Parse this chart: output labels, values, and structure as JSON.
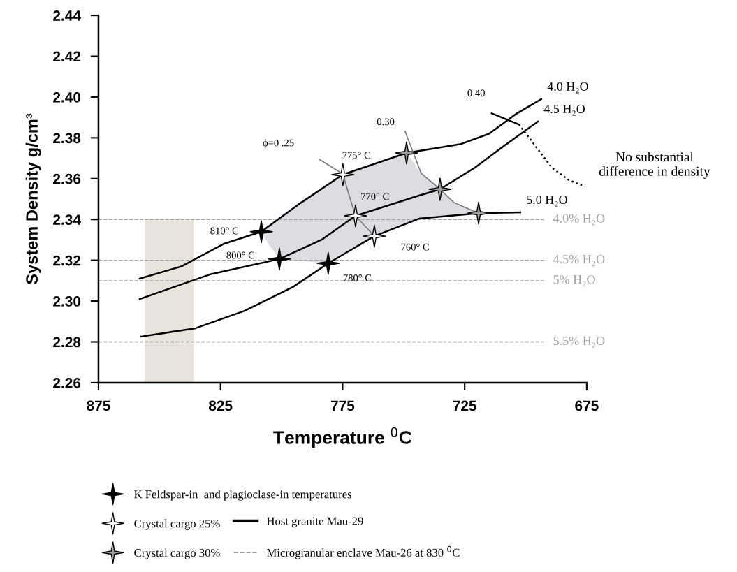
{
  "chart_data": {
    "type": "line",
    "xlabel": "Temperature $^{0}$C",
    "ylabel": "System Density g/cm³",
    "xlim": [
      875,
      675
    ],
    "xticks": [
      875,
      825,
      775,
      725,
      675
    ],
    "ylim": [
      2.26,
      2.44
    ],
    "yticks": [
      2.26,
      2.28,
      {
        "value": 2.3,
        "label": "2.30"
      },
      2.32,
      2.34,
      2.36,
      2.38,
      {
        "value": 2.4,
        "label": "2.40"
      },
      2.42,
      2.44
    ],
    "grid": false,
    "legend": "bottom",
    "series": [
      {
        "type": "area",
        "color": "#dcdde0",
        "x": [
          808.3,
          792.3,
          774.9,
          748.8,
          742.8,
          735.1,
          729.4,
          719.3,
          743.7,
          762,
          780.9,
          800.9,
          805.2
        ],
        "values": [
          2.334,
          2.348,
          2.362,
          2.3726,
          2.3626,
          2.3548,
          2.3483,
          2.3431,
          2.3404,
          2.3318,
          2.3185,
          2.3206,
          2.3277
        ]
      },
      {
        "name": "4.0 H₂O",
        "color": "#000000",
        "x": [
          858.1,
          841,
          823.8,
          808.3,
          792.3,
          774.9,
          748.8,
          726.5,
          715,
          703.6,
          693.6
        ],
        "values": [
          2.311,
          2.317,
          2.328,
          2.334,
          2.348,
          2.362,
          2.3726,
          2.377,
          2.382,
          2.392,
          2.399
        ]
      },
      {
        "name": "4.5 H₂O",
        "color": "#000000",
        "x": [
          858.1,
          829.5,
          800.9,
          783.7,
          769.7,
          743.7,
          735.1,
          720.8,
          709.4,
          695
        ],
        "values": [
          2.301,
          2.313,
          2.3206,
          2.33,
          2.3418,
          2.3517,
          2.3548,
          2.3654,
          2.3756,
          2.388
        ]
      },
      {
        "name": "5.0 H₂O",
        "color": "#000000",
        "x": [
          857.5,
          835.2,
          815.2,
          795.2,
          780.9,
          762,
          743.7,
          719.3,
          702.2
        ],
        "values": [
          2.2826,
          2.2867,
          2.2952,
          2.307,
          2.3185,
          2.3318,
          2.3404,
          2.3431,
          2.3435
        ]
      },
      {
        "type": "line",
        "color": "#7a7a7a",
        "x": [
          784.6,
          774.9,
          772.3,
          769.7,
          762
        ],
        "values": [
          2.3695,
          2.3623,
          2.3517,
          2.3418,
          2.3318
        ]
      },
      {
        "type": "line",
        "color": "#7a7a7a",
        "x": [
          749.4,
          742.8,
          735.1,
          729.4,
          719.3
        ],
        "values": [
          2.3832,
          2.3626,
          2.3548,
          2.3483,
          2.3431
        ]
      },
      {
        "type": "line",
        "color": "#000000",
        "x": [
          713.9,
          702.8
        ],
        "values": [
          2.392,
          2.3866
        ]
      },
      {
        "type": "line",
        "color": "#000000",
        "line_style": "dotted",
        "x": [
          702.8,
          697.9,
          689.3,
          682.2,
          675.6
        ],
        "values": [
          2.3866,
          2.379,
          2.3654,
          2.3592,
          2.3561
        ]
      },
      {
        "type": "scatter",
        "marker": "star",
        "name": "K Feldspar-in  and plagioclase-in temperatures",
        "color": "#000000",
        "x": [
          808.3,
          800.9,
          780.9
        ],
        "values": [
          2.334,
          2.3206,
          2.3185
        ]
      },
      {
        "type": "scatter",
        "marker": "star",
        "name": "Crystal cargo 25%",
        "color": "#ffffff",
        "x": [
          774.9,
          769.7,
          762
        ],
        "values": [
          2.362,
          2.3418,
          2.3318
        ]
      },
      {
        "type": "scatter",
        "marker": "star",
        "name": "Crystal cargo 30%",
        "color": "#a0a0a0",
        "x": [
          748.8,
          735.1,
          719.3
        ],
        "values": [
          2.3726,
          2.3548,
          2.3431
        ]
      }
    ],
    "ref_lines": [
      {
        "axis": "y",
        "value": 2.34,
        "label": "4.0% H₂O",
        "color": "#a0a0a0",
        "line_style": "dashed"
      },
      {
        "axis": "y",
        "value": 2.32,
        "label": "4.5% H₂O",
        "color": "#a0a0a0",
        "line_style": "dashed"
      },
      {
        "axis": "y",
        "value": 2.31,
        "label": "5% H₂O",
        "color": "#a0a0a0",
        "line_style": "dashed"
      },
      {
        "axis": "y",
        "value": 2.28,
        "label": "5.5% H₂O",
        "color": "#a0a0a0",
        "line_style": "dashed"
      }
    ],
    "bands": [
      {
        "axis": "x",
        "from": 856,
        "to": 836,
        "color": "#e8e4dc"
      }
    ],
    "annotations": [
      {
        "text": "810° C",
        "x": 808.3,
        "y": 2.334
      },
      {
        "text": "800° C",
        "x": 800.9,
        "y": 2.3206
      },
      {
        "text": "780° C",
        "x": 780.9,
        "y": 2.3185
      },
      {
        "text": "775° C",
        "x": 774.9,
        "y": 2.362
      },
      {
        "text": "770° C",
        "x": 769.7,
        "y": 2.3418
      },
      {
        "text": "760° C",
        "x": 762,
        "y": 2.3318
      },
      {
        "text": "ϕ=0 .25",
        "x": 784.6,
        "y": 2.3695
      },
      {
        "text": "0.30",
        "x": 749.4,
        "y": 2.3832
      },
      {
        "text": "0.40",
        "x": 713.9,
        "y": 2.392
      },
      {
        "text": "No substantial\ndifference in density",
        "x": 675.6,
        "y": 2.3561
      },
      "Host granite Mau-29",
      "Microgranular enclave Mau-26 at 830 $^{0}$C"
    ]
  }
}
